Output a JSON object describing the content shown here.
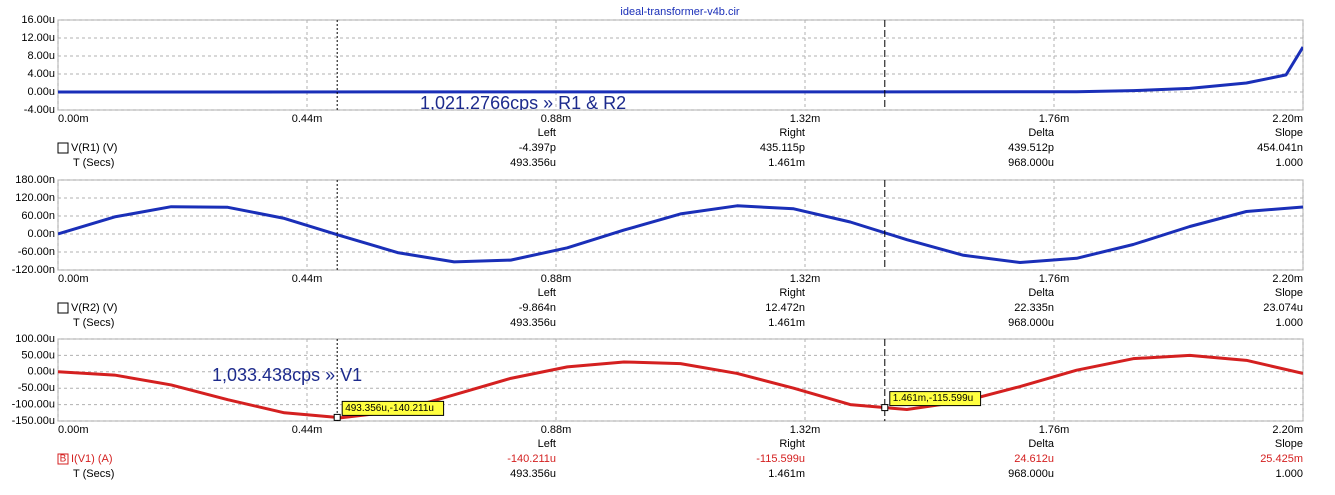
{
  "chart_data": [
    {
      "type": "line",
      "title": "ideal-transformer-v4b.cir",
      "x": [
        0,
        1.8,
        1.9,
        2.0,
        2.1,
        2.17,
        2.2
      ],
      "series": [
        {
          "name": "V(R1) (V)",
          "color": "#1a2fb8",
          "label_color": "#000000",
          "values": [
            0,
            0.05,
            0.3,
            0.8,
            2,
            3.8,
            10
          ]
        }
      ],
      "xlim": [
        0,
        2.2
      ],
      "xticks": [
        {
          "value": 0,
          "label": "0.00m"
        },
        {
          "value": 0.44,
          "label": "0.44m"
        },
        {
          "value": 0.88,
          "label": "0.88m"
        },
        {
          "value": 1.32,
          "label": "1.32m"
        },
        {
          "value": 1.76,
          "label": "1.76m"
        },
        {
          "value": 2.2,
          "label": "2.20m"
        }
      ],
      "ylim": [
        -4,
        16
      ],
      "yticks": [
        {
          "value": 16,
          "label": "16.00u"
        },
        {
          "value": 12,
          "label": "12.00u"
        },
        {
          "value": 8,
          "label": "8.00u"
        },
        {
          "value": 4,
          "label": "4.00u"
        },
        {
          "value": 0,
          "label": "0.00u"
        },
        {
          "value": -4,
          "label": "-4.00u"
        }
      ],
      "grid": true,
      "annotation": "1,021.2766cps » R1 & R2",
      "cursors": [
        0.493356,
        1.461
      ],
      "readout": {
        "headers": [
          "Left",
          "Right",
          "Delta",
          "Slope"
        ],
        "series_values": [
          "-4.397p",
          "435.115p",
          "439.512p",
          "454.041n"
        ],
        "time_label": "T (Secs)",
        "time_values": [
          "493.356u",
          "1.461m",
          "968.000u",
          "1.000"
        ]
      }
    },
    {
      "type": "line",
      "x": [
        0,
        0.1,
        0.2,
        0.3,
        0.4,
        0.5,
        0.6,
        0.7,
        0.8,
        0.9,
        1.0,
        1.1,
        1.2,
        1.3,
        1.4,
        1.5,
        1.6,
        1.7,
        1.8,
        1.9,
        2.0,
        2.1,
        2.2
      ],
      "series": [
        {
          "name": "V(R2) (V)",
          "color": "#1a2fb8",
          "label_color": "#000000",
          "values": [
            0,
            57,
            91,
            89,
            52,
            -6,
            -62,
            -93,
            -87,
            -46,
            13,
            67,
            94,
            84,
            40,
            -19,
            -71,
            -95,
            -81,
            -35,
            25,
            75,
            90
          ]
        }
      ],
      "xlim": [
        0,
        2.2
      ],
      "xticks": [
        {
          "value": 0,
          "label": "0.00m"
        },
        {
          "value": 0.44,
          "label": "0.44m"
        },
        {
          "value": 0.88,
          "label": "0.88m"
        },
        {
          "value": 1.32,
          "label": "1.32m"
        },
        {
          "value": 1.76,
          "label": "1.76m"
        },
        {
          "value": 2.2,
          "label": "2.20m"
        }
      ],
      "ylim": [
        -120,
        180
      ],
      "yticks": [
        {
          "value": 180,
          "label": "180.00n"
        },
        {
          "value": 120,
          "label": "120.00n"
        },
        {
          "value": 60,
          "label": "60.00n"
        },
        {
          "value": 0,
          "label": "0.00n"
        },
        {
          "value": -60,
          "label": "-60.00n"
        },
        {
          "value": -120,
          "label": "-120.00n"
        }
      ],
      "grid": true,
      "cursors": [
        0.493356,
        1.461
      ],
      "readout": {
        "headers": [
          "Left",
          "Right",
          "Delta",
          "Slope"
        ],
        "series_values": [
          "-9.864n",
          "12.472n",
          "22.335n",
          "23.074u"
        ],
        "time_label": "T (Secs)",
        "time_values": [
          "493.356u",
          "1.461m",
          "968.000u",
          "1.000"
        ]
      }
    },
    {
      "type": "line",
      "x": [
        0,
        0.1,
        0.2,
        0.3,
        0.4,
        0.5,
        0.6,
        0.7,
        0.8,
        0.9,
        1.0,
        1.1,
        1.2,
        1.3,
        1.4,
        1.5,
        1.6,
        1.7,
        1.8,
        1.9,
        2.0,
        2.1,
        2.2
      ],
      "series": [
        {
          "name": "I(V1) (A)",
          "color": "#d42020",
          "label_color": "#d42020",
          "legend_marker": "B",
          "values": [
            0,
            -10,
            -40,
            -85,
            -125,
            -140,
            -120,
            -70,
            -20,
            15,
            30,
            25,
            -5,
            -50,
            -100,
            -115,
            -90,
            -45,
            5,
            40,
            50,
            35,
            -5
          ]
        }
      ],
      "xlim": [
        0,
        2.2
      ],
      "xticks": [
        {
          "value": 0,
          "label": "0.00m"
        },
        {
          "value": 0.44,
          "label": "0.44m"
        },
        {
          "value": 0.88,
          "label": "0.88m"
        },
        {
          "value": 1.32,
          "label": "1.32m"
        },
        {
          "value": 1.76,
          "label": "1.76m"
        },
        {
          "value": 2.2,
          "label": "2.20m"
        }
      ],
      "ylim": [
        -150,
        100
      ],
      "yticks": [
        {
          "value": 100,
          "label": "100.00u"
        },
        {
          "value": 50,
          "label": "50.00u"
        },
        {
          "value": 0,
          "label": "0.00u"
        },
        {
          "value": -50,
          "label": "-50.00u"
        },
        {
          "value": -100,
          "label": "-100.00u"
        },
        {
          "value": -150,
          "label": "-150.00u"
        }
      ],
      "grid": true,
      "annotation": "1,033.438cps » V1",
      "cursors": [
        0.493356,
        1.461
      ],
      "cursor_labels": [
        "493.356u,-140.211u",
        "1.461m,-115.599u"
      ],
      "readout": {
        "headers": [
          "Left",
          "Right",
          "Delta",
          "Slope"
        ],
        "series_values": [
          "-140.211u",
          "-115.599u",
          "24.612u",
          "25.425m"
        ],
        "time_label": "T (Secs)",
        "time_values": [
          "493.356u",
          "1.461m",
          "968.000u",
          "1.000"
        ]
      }
    }
  ]
}
